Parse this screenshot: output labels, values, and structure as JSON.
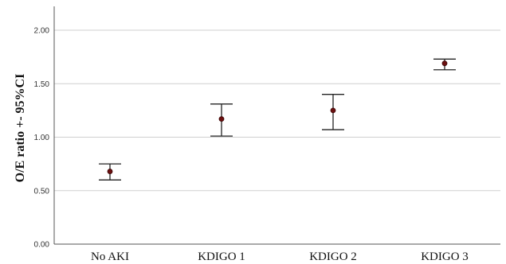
{
  "chart_data": {
    "type": "scatter",
    "subtype": "error-bar",
    "title": "",
    "xlabel": "",
    "ylabel": "O/E ratio +- 95%CI",
    "ylim": [
      0,
      2.25
    ],
    "yticks": [
      0,
      0.5,
      1.0,
      1.5,
      2.0
    ],
    "ytick_labels": [
      "0.00",
      "0.50",
      "1.00",
      "1.50",
      "2.00"
    ],
    "grid": "horizontal",
    "categories": [
      "No AKI",
      "KDIGO 1",
      "KDIGO 2",
      "KDIGO 3"
    ],
    "values": [
      0.68,
      1.17,
      1.25,
      1.69
    ],
    "ci_lower": [
      0.6,
      1.01,
      1.07,
      1.63
    ],
    "ci_upper": [
      0.75,
      1.31,
      1.4,
      1.73
    ],
    "point_color": "#6b0f0f",
    "errorbar_color": "#222222",
    "grid_color": "#cfcfcf"
  }
}
